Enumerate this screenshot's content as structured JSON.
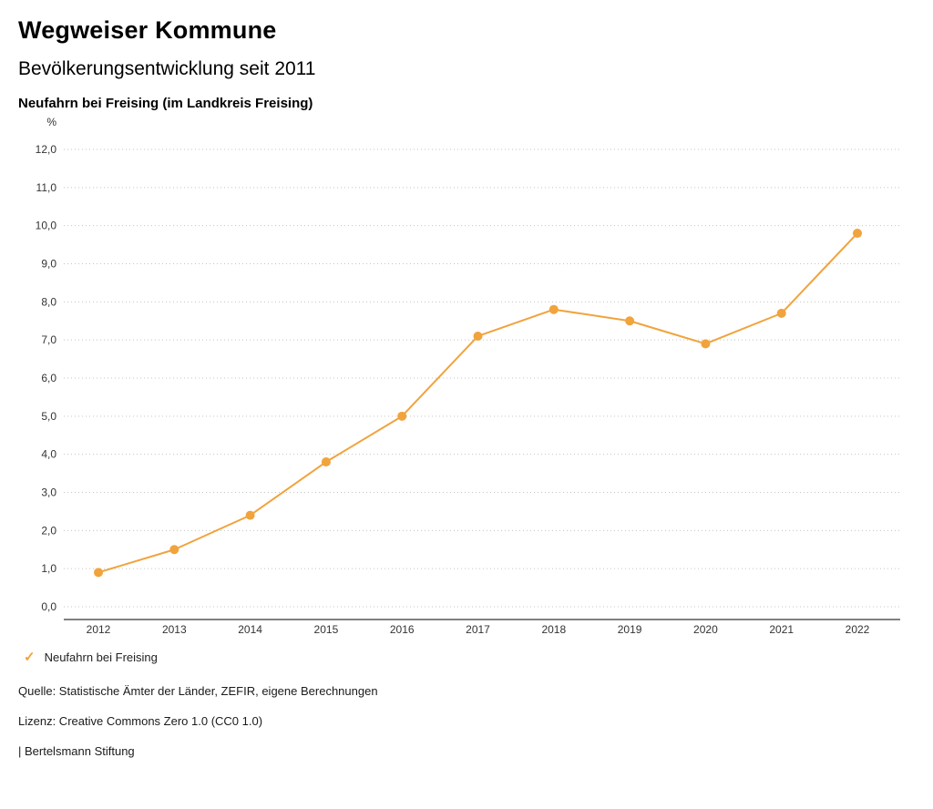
{
  "header": {
    "title": "Wegweiser Kommune",
    "subtitle": "Bevölkerungsentwicklung seit 2011",
    "region": "Neufahrn bei Freising (im Landkreis Freising)"
  },
  "chart_data": {
    "type": "line",
    "title": "Bevölkerungsentwicklung seit 2011",
    "subtitle": "Neufahrn bei Freising (im Landkreis Freising)",
    "unit_label": "%",
    "categories": [
      "2012",
      "2013",
      "2014",
      "2015",
      "2016",
      "2017",
      "2018",
      "2019",
      "2020",
      "2021",
      "2022"
    ],
    "series": [
      {
        "name": "Neufahrn bei Freising",
        "values": [
          0.9,
          1.5,
          2.4,
          3.8,
          5.0,
          7.1,
          7.8,
          7.5,
          6.9,
          7.7,
          9.8
        ]
      }
    ],
    "xlabel": "",
    "ylabel": "%",
    "ylim": [
      0,
      12
    ],
    "ytick_step": 1,
    "grid": true,
    "gridline_style": "dotted",
    "legend_position": "bottom",
    "accent_color": "#F1A33C",
    "gridline_color": "#c4c4c4",
    "tick_label_color": "#333333"
  },
  "legend": {
    "items": [
      {
        "label": "Neufahrn bei Freising",
        "color": "#F1A33C",
        "marker": "check-icon",
        "check_glyph": "✓"
      }
    ]
  },
  "footer": {
    "source": "Quelle: Statistische Ämter der Länder, ZEFIR, eigene Berechnungen",
    "license": "Lizenz: Creative Commons Zero 1.0 (CC0 1.0)",
    "attribution": "| Bertelsmann Stiftung"
  }
}
